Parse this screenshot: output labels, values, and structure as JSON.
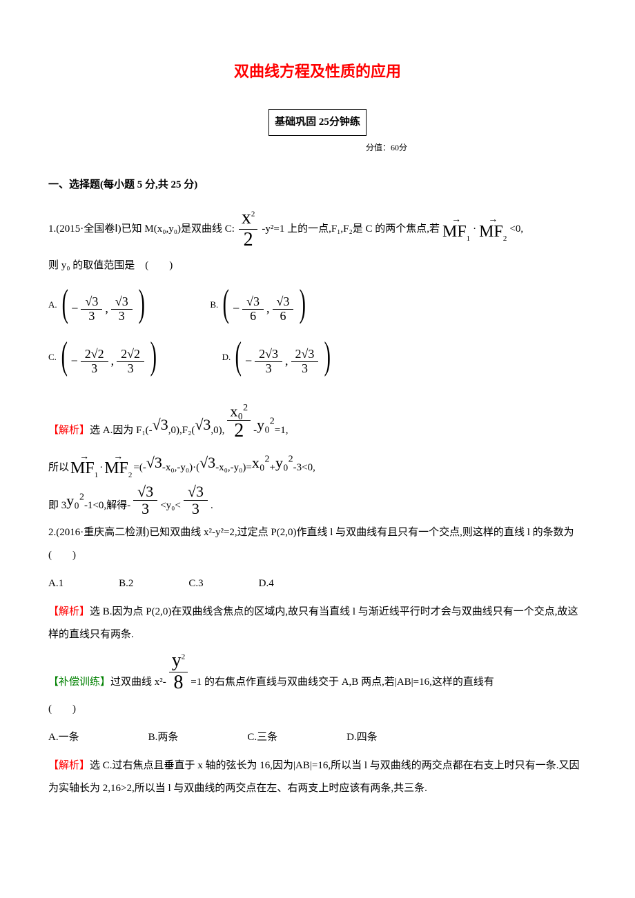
{
  "title": "双曲线方程及性质的应用",
  "banner": "基础巩固 25分钟练",
  "banner_sub": "分值：60分",
  "section1": "一、选择题(每小题 5 分,共 25 分)",
  "q1": {
    "pre": "1.(2015·全国卷Ⅰ)已知 M(x₀,y₀)是双曲线 C:",
    "frac_num": "x",
    "frac_sup": "2",
    "frac_den": "2",
    "mid": "-y²=1 上的一点,F₁,F₂是 C 的两个焦点,若",
    "vec1": "MF",
    "vec1_sub": "1",
    "dot": "·",
    "vec2": "MF",
    "vec2_sub": "2",
    "post": "<0,",
    "line2": "则 y₀ 的取值范围是　(　　)"
  },
  "choices1": {
    "A": {
      "label": "A.",
      "neg": "−",
      "n1": "√3",
      "d1": "3",
      "comma": ",",
      "n2": "√3",
      "d2": "3"
    },
    "B": {
      "label": "B.",
      "neg": "−",
      "n1": "√3",
      "d1": "6",
      "comma": ",",
      "n2": "√3",
      "d2": "6"
    },
    "C": {
      "label": "C.",
      "neg": "−",
      "n1": "2√2",
      "d1": "3",
      "comma": ",",
      "n2": "2√2",
      "d2": "3"
    },
    "D": {
      "label": "D.",
      "neg": "−",
      "n1": "2√3",
      "d1": "3",
      "comma": ",",
      "n2": "2√3",
      "d2": "3"
    }
  },
  "sol1": {
    "tag": "【解析】",
    "l1a": "选 A.因为 F₁(-",
    "sqrt3a": "√3",
    "l1b": ",0),F₂(",
    "sqrt3b": "√3",
    "l1c": ",0),",
    "frac2n": "x₀",
    "frac2sup": "2",
    "frac2d": "2",
    "l1d": "-",
    "y0": "y₀",
    "y0sup": "2",
    "l1e": "=1,",
    "l2a": "所以",
    "vec1": "MF",
    "vec2": "MF",
    "l2b": "=(-",
    "l2c": "-x₀,-y₀)·(",
    "l2d": "-x₀,-y₀)=",
    "x0": "x₀",
    "plus": "+",
    "l2e": "-3<0,",
    "l3a": "即 3",
    "l3b": "-1<0,解得-",
    "f3n": "√3",
    "f3d": "3",
    "l3c": "<y₀<",
    "l3d": "."
  },
  "q2": {
    "text": "2.(2016·重庆高二检测)已知双曲线 x²-y²=2,过定点 P(2,0)作直线 l 与双曲线有且只有一个交点,则这样的直线 l 的条数为　(　　)",
    "A": "A.1",
    "B": "B.2",
    "C": "C.3",
    "D": "D.4"
  },
  "sol2": {
    "tag": "【解析】",
    "text": "选 B.因为点 P(2,0)在双曲线含焦点的区域内,故只有当直线 l 与渐近线平行时才会与双曲线只有一个交点,故这样的直线只有两条."
  },
  "supp": {
    "tag": "【补偿训练】",
    "pre": "过双曲线 x²-",
    "fn": "y",
    "fsup": "2",
    "fd": "8",
    "post": "=1 的右焦点作直线与双曲线交于 A,B 两点,若|AB|=16,这样的直线有",
    "blank": "(　　)",
    "A": "A.一条",
    "B": "B.两条",
    "C": "C.三条",
    "D": "D.四条"
  },
  "sol3": {
    "tag": "【解析】",
    "text": "选 C.过右焦点且垂直于 x 轴的弦长为 16,因为|AB|=16,所以当 l 与双曲线的两交点都在右支上时只有一条.又因为实轴长为 2,16>2,所以当 l 与双曲线的两交点在左、右两支上时应该有两条,共三条."
  }
}
